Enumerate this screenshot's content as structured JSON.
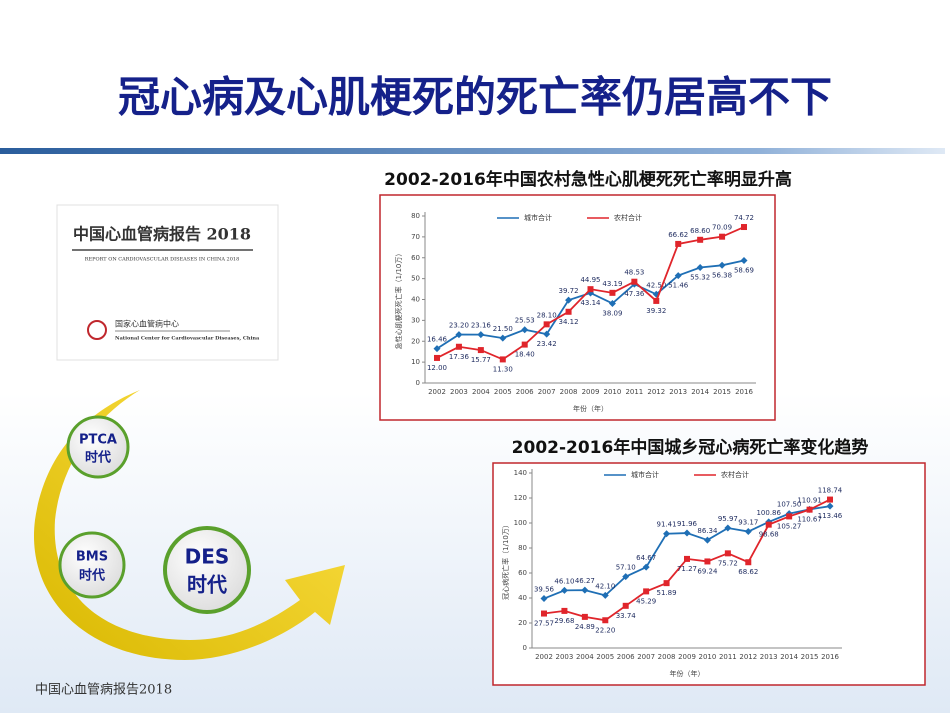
{
  "title": "冠心病及心肌梗死的死亡率仍居高不下",
  "book": {
    "title": "中国心血管病报告 2018",
    "subtitle": "REPORT ON CARDIOVASCULAR DISEASES IN CHINA 2018",
    "publisher": "国家心血管病中心",
    "publisher_en": "National Center for Cardiovascular Diseases, China"
  },
  "eras": [
    {
      "name": "PTCA",
      "label": "时代"
    },
    {
      "name": "BMS",
      "label": "时代"
    },
    {
      "name": "DES",
      "label": "时代"
    }
  ],
  "footer": "中国心血管病报告2018",
  "chart_data": [
    {
      "type": "line",
      "title": "2002-2016年中国农村急性心肌梗死死亡率明显升高",
      "y_label": "急性心肌梗死死亡率（1/10万）",
      "x_label": "年份（年）",
      "categories": [
        "2002",
        "2003",
        "2004",
        "2005",
        "2006",
        "2007",
        "2008",
        "2009",
        "2010",
        "2011",
        "2012",
        "2013",
        "2014",
        "2015",
        "2016"
      ],
      "ylim": [
        0,
        80
      ],
      "yticks": [
        0,
        10,
        20,
        30,
        40,
        50,
        60,
        70,
        80
      ],
      "series": [
        {
          "name": "城市合计",
          "color": "#1f6fb5",
          "values": [
            16.46,
            23.2,
            23.16,
            21.5,
            25.53,
            23.42,
            39.72,
            43.14,
            38.09,
            47.36,
            42.5,
            51.46,
            55.32,
            56.38,
            58.69
          ],
          "value_labels": [
            "16.46",
            "23.20",
            "23.16",
            "21.50",
            "25.53",
            "23.42",
            "39.72",
            "43.14",
            "38.09",
            "47.36",
            "42.50",
            "51.46",
            "55.32",
            "56.38",
            "58.69"
          ]
        },
        {
          "name": "农村合计",
          "color": "#e0252b",
          "values": [
            12.0,
            17.36,
            15.77,
            11.3,
            18.4,
            28.1,
            34.12,
            44.95,
            43.19,
            48.53,
            39.32,
            66.62,
            68.6,
            70.09,
            74.72
          ],
          "value_labels": [
            "12.00",
            "17.36",
            "15.77",
            "11.30",
            "18.40",
            "28.10",
            "34.12",
            "44.95",
            "43.19",
            "48.53",
            "39.32",
            "66.62",
            "68.60",
            "70.09",
            "74.72"
          ]
        }
      ]
    },
    {
      "type": "line",
      "title": "2002-2016年中国城乡冠心病死亡率变化趋势",
      "y_label": "冠心病死亡率（1/10万）",
      "x_label": "年份（年）",
      "categories": [
        "2002",
        "2003",
        "2004",
        "2005",
        "2006",
        "2007",
        "2008",
        "2009",
        "2010",
        "2011",
        "2012",
        "2013",
        "2014",
        "2015",
        "2016"
      ],
      "ylim": [
        0,
        140
      ],
      "yticks": [
        0,
        20,
        40,
        60,
        80,
        100,
        120,
        140
      ],
      "series": [
        {
          "name": "城市合计",
          "color": "#1f6fb5",
          "values": [
            39.56,
            46.1,
            46.27,
            42.1,
            57.1,
            64.67,
            91.41,
            91.96,
            86.34,
            95.97,
            93.17,
            100.86,
            107.5,
            110.91,
            113.46
          ],
          "value_labels": [
            "39.56",
            "46.10",
            "46.27",
            "42.10",
            "57.10",
            "64.67",
            "91.41",
            "91.96",
            "86.34",
            "95.97",
            "93.17",
            "100.86",
            "107.50",
            "110.91",
            "113.46"
          ]
        },
        {
          "name": "农村合计",
          "color": "#e0252b",
          "values": [
            27.57,
            29.68,
            24.89,
            22.2,
            33.74,
            45.29,
            51.89,
            71.27,
            69.24,
            75.72,
            68.62,
            98.68,
            105.27,
            110.67,
            118.74
          ],
          "value_labels": [
            "27.57",
            "29.68",
            "24.89",
            "22.20",
            "33.74",
            "45.29",
            "51.89",
            "71.27",
            "69.24",
            "75.72",
            "68.62",
            "98.68",
            "105.27",
            "110.67",
            "118.74"
          ]
        }
      ]
    }
  ]
}
